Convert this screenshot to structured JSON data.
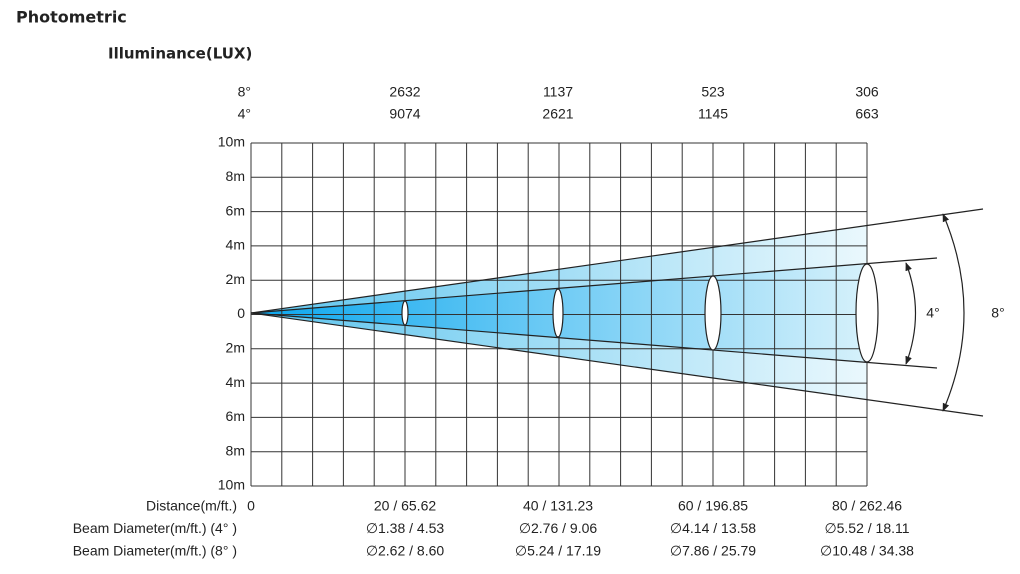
{
  "header": {
    "title": "Photometric",
    "subtitle": "Illuminance(LUX)"
  },
  "illuminance": {
    "rows": [
      {
        "label": "8°",
        "values": [
          2632,
          1137,
          523,
          306
        ]
      },
      {
        "label": "4°",
        "values": [
          9074,
          2621,
          1145,
          663
        ]
      }
    ]
  },
  "axis": {
    "labels": [
      "10m",
      "8m",
      "6m",
      "4m",
      "2m",
      "0",
      "2m",
      "4m",
      "6m",
      "8m",
      "10m"
    ]
  },
  "beam_angles": [
    "4°",
    "8°"
  ],
  "table": {
    "rows": [
      {
        "label": "Distance(m/ft.)",
        "values": [
          "0",
          "20 / 65.62",
          "40 / 131.23",
          "60 / 196.85",
          "80 / 262.46"
        ]
      },
      {
        "label": "Beam Diameter(m/ft.) (4° )",
        "values": [
          "∅1.38 / 4.53",
          "∅2.76 / 9.06",
          "∅4.14 / 13.58",
          "∅5.52 / 18.11"
        ]
      },
      {
        "label": "Beam Diameter(m/ft.) (8° )",
        "values": [
          "∅2.62 / 8.60",
          "∅5.24 / 17.19",
          "∅7.86 / 25.79",
          "∅10.48 / 34.38"
        ]
      }
    ]
  }
}
